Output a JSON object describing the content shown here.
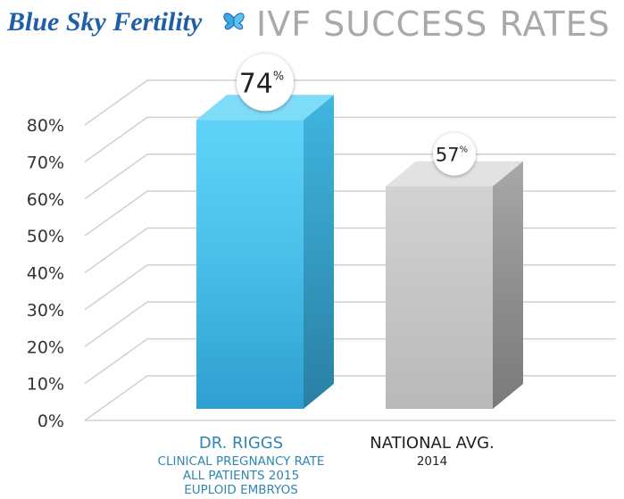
{
  "header": {
    "brand": "Blue Sky Fertility",
    "title": "IVF SUCCESS RATES"
  },
  "colors": {
    "brand_blue": "#1f5fa8",
    "title_gray": "#a9a9a9",
    "bar_blue": "#52c8ef",
    "bar_gray": "#c9c9c9",
    "label_blue": "#2f86b3",
    "grid": "#d0d0d0"
  },
  "chart_data": {
    "type": "bar",
    "title": "IVF SUCCESS RATES",
    "yticks": [
      "0%",
      "10%",
      "20%",
      "30%",
      "40%",
      "50%",
      "60%",
      "70%",
      "80%"
    ],
    "ylim": [
      0,
      80
    ],
    "grid": true,
    "categories": [
      "DR. RIGGS",
      "NATIONAL AVG."
    ],
    "values": [
      74,
      57
    ],
    "value_labels": [
      {
        "number": "74",
        "unit": "%"
      },
      {
        "number": "57",
        "unit": "%"
      }
    ],
    "category_sublabels": [
      [
        "CLINICAL PREGNANCY RATE",
        "ALL PATIENTS 2015",
        "EUPLOID EMBRYOS"
      ],
      [
        "2014"
      ]
    ]
  }
}
